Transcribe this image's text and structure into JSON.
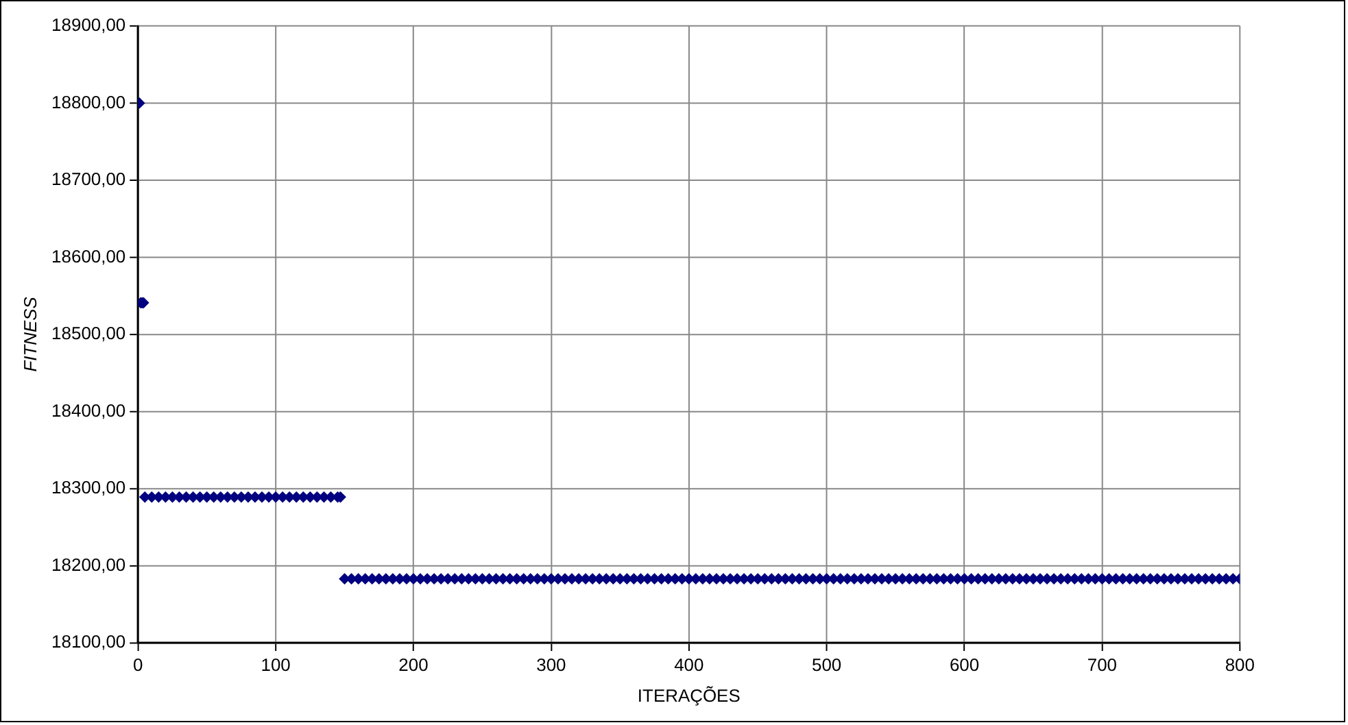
{
  "chart_data": {
    "type": "scatter",
    "xlabel": "ITERAÇÕES",
    "ylabel": "FITNESS",
    "marker": "diamond",
    "grid": true,
    "legend": false,
    "xlim": [
      0,
      800
    ],
    "xticks": [
      0,
      100,
      200,
      300,
      400,
      500,
      600,
      700,
      800
    ],
    "ylim": [
      18100,
      18900
    ],
    "yticks": [
      {
        "value": 18100,
        "label": "18100,00"
      },
      {
        "value": 18200,
        "label": "18200,00"
      },
      {
        "value": 18300,
        "label": "18300,00"
      },
      {
        "value": 18400,
        "label": "18400,00"
      },
      {
        "value": 18500,
        "label": "18500,00"
      },
      {
        "value": 18600,
        "label": "18600,00"
      },
      {
        "value": 18700,
        "label": "18700,00"
      },
      {
        "value": 18800,
        "label": "18800,00"
      },
      {
        "value": 18900,
        "label": "18900,00"
      }
    ],
    "series": [
      {
        "color": "#000080",
        "x": [
          1,
          2,
          3,
          4,
          5,
          10,
          15,
          20,
          25,
          30,
          35,
          40,
          45,
          50,
          55,
          60,
          65,
          70,
          75,
          80,
          85,
          90,
          95,
          100,
          105,
          110,
          115,
          120,
          125,
          130,
          135,
          140,
          145,
          147,
          150,
          155,
          160,
          165,
          170,
          175,
          180,
          185,
          190,
          195,
          200,
          205,
          210,
          215,
          220,
          225,
          230,
          235,
          240,
          245,
          250,
          255,
          260,
          265,
          270,
          275,
          280,
          285,
          290,
          295,
          300,
          305,
          310,
          315,
          320,
          325,
          330,
          335,
          340,
          345,
          350,
          355,
          360,
          365,
          370,
          375,
          380,
          385,
          390,
          395,
          400,
          405,
          410,
          415,
          420,
          425,
          430,
          435,
          440,
          445,
          450,
          455,
          460,
          465,
          470,
          475,
          480,
          485,
          490,
          495,
          500,
          505,
          510,
          515,
          520,
          525,
          530,
          535,
          540,
          545,
          550,
          555,
          560,
          565,
          570,
          575,
          580,
          585,
          590,
          595,
          600,
          605,
          610,
          615,
          620,
          625,
          630,
          635,
          640,
          645,
          650,
          655,
          660,
          665,
          670,
          675,
          680,
          685,
          690,
          695,
          700,
          705,
          710,
          715,
          720,
          725,
          730,
          735,
          740,
          745,
          750,
          755,
          760,
          765,
          770,
          775,
          780,
          785,
          790,
          795,
          800
        ],
        "values": [
          18800,
          18541,
          18541,
          18541,
          18289,
          18289,
          18289,
          18289,
          18289,
          18289,
          18289,
          18289,
          18289,
          18289,
          18289,
          18289,
          18289,
          18289,
          18289,
          18289,
          18289,
          18289,
          18289,
          18289,
          18289,
          18289,
          18289,
          18289,
          18289,
          18289,
          18289,
          18289,
          18289,
          18289,
          18183,
          18183,
          18183,
          18183,
          18183,
          18183,
          18183,
          18183,
          18183,
          18183,
          18183,
          18183,
          18183,
          18183,
          18183,
          18183,
          18183,
          18183,
          18183,
          18183,
          18183,
          18183,
          18183,
          18183,
          18183,
          18183,
          18183,
          18183,
          18183,
          18183,
          18183,
          18183,
          18183,
          18183,
          18183,
          18183,
          18183,
          18183,
          18183,
          18183,
          18183,
          18183,
          18183,
          18183,
          18183,
          18183,
          18183,
          18183,
          18183,
          18183,
          18183,
          18183,
          18183,
          18183,
          18183,
          18183,
          18183,
          18183,
          18183,
          18183,
          18183,
          18183,
          18183,
          18183,
          18183,
          18183,
          18183,
          18183,
          18183,
          18183,
          18183,
          18183,
          18183,
          18183,
          18183,
          18183,
          18183,
          18183,
          18183,
          18183,
          18183,
          18183,
          18183,
          18183,
          18183,
          18183,
          18183,
          18183,
          18183,
          18183,
          18183,
          18183,
          18183,
          18183,
          18183,
          18183,
          18183,
          18183,
          18183,
          18183,
          18183,
          18183,
          18183,
          18183,
          18183,
          18183,
          18183,
          18183,
          18183,
          18183,
          18183,
          18183,
          18183,
          18183,
          18183,
          18183,
          18183,
          18183,
          18183,
          18183,
          18183,
          18183,
          18183,
          18183,
          18183,
          18183,
          18183,
          18183,
          18183,
          18183,
          18183
        ]
      }
    ]
  }
}
